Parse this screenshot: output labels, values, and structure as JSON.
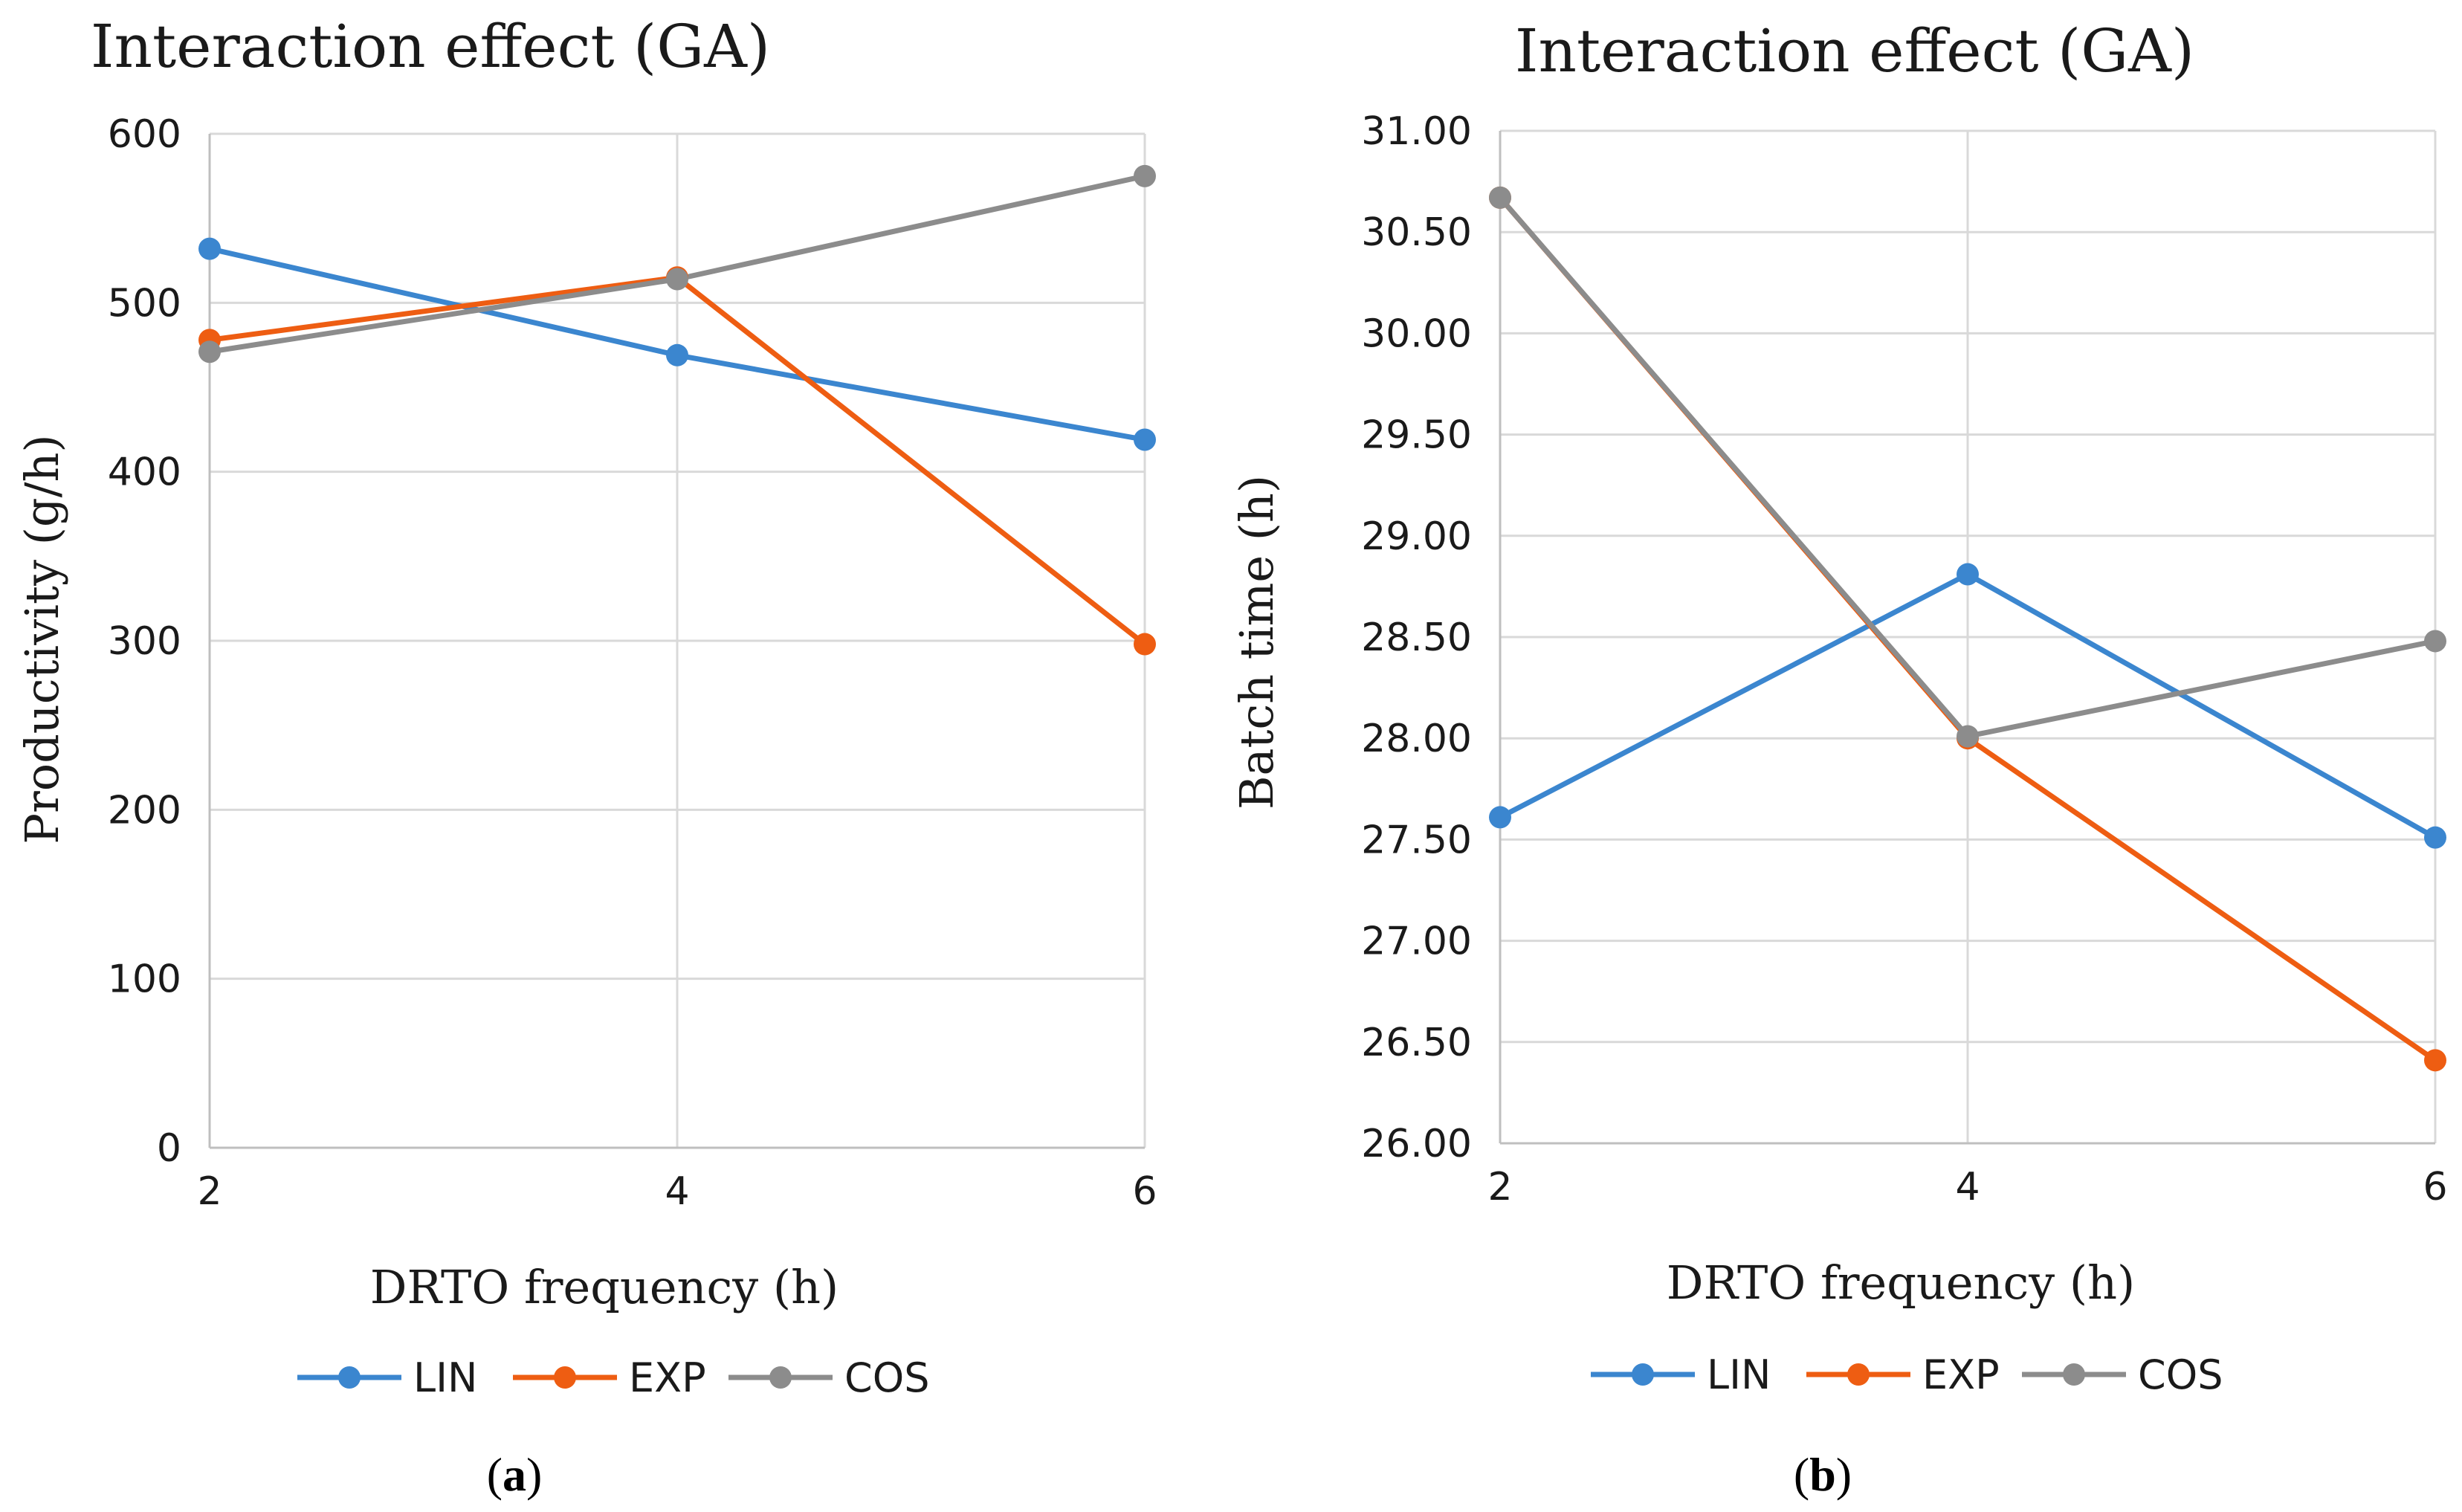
{
  "chart_data": [
    {
      "type": "line",
      "title": "Interaction effect (GA)",
      "xlabel": "DRTO frequency (h)",
      "ylabel": "Productivity (g/h)",
      "categories": [
        "2",
        "4",
        "6"
      ],
      "ylim": [
        0,
        600
      ],
      "yticks": [
        "0",
        "100",
        "200",
        "300",
        "400",
        "500",
        "600"
      ],
      "grid": true,
      "legend_position": "bottom",
      "series": [
        {
          "name": "LIN",
          "color": "#3b86cf",
          "values": [
            532,
            469,
            419
          ]
        },
        {
          "name": "EXP",
          "color": "#ee5d12",
          "values": [
            478,
            515,
            298
          ]
        },
        {
          "name": "COS",
          "color": "#8c8c8c",
          "values": [
            471,
            514,
            575
          ]
        }
      ],
      "caption": {
        "prefix": "(",
        "letter": "a",
        "suffix": ")"
      }
    },
    {
      "type": "line",
      "title": "Interaction effect (GA)",
      "xlabel": "DRTO frequency (h)",
      "ylabel": "Batch time (h)",
      "categories": [
        "2",
        "4",
        "6"
      ],
      "ylim": [
        26,
        31
      ],
      "yticks": [
        "26.00",
        "26.50",
        "27.00",
        "27.50",
        "28.00",
        "28.50",
        "29.00",
        "29.50",
        "30.00",
        "30.50",
        "31.00"
      ],
      "grid": true,
      "legend_position": "bottom",
      "series": [
        {
          "name": "LIN",
          "color": "#3b86cf",
          "values": [
            27.61,
            28.81,
            27.51
          ]
        },
        {
          "name": "EXP",
          "color": "#ee5d12",
          "values": [
            30.67,
            28.0,
            26.41
          ]
        },
        {
          "name": "COS",
          "color": "#8c8c8c",
          "values": [
            30.67,
            28.01,
            28.48
          ]
        }
      ],
      "caption": {
        "prefix": "(",
        "letter": "b",
        "suffix": ")"
      }
    }
  ]
}
